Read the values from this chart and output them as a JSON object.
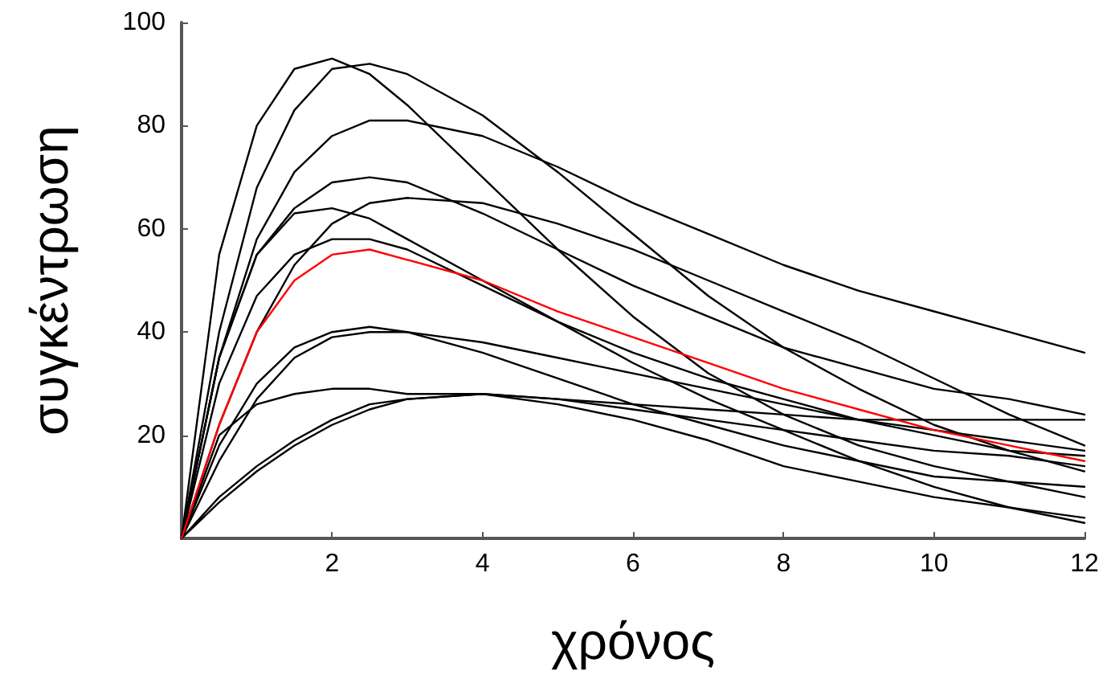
{
  "chart_data": {
    "type": "line",
    "xlabel": "χρόνος",
    "ylabel": "συγκέντρωση",
    "x": [
      0,
      0.5,
      1,
      1.5,
      2,
      2.5,
      3,
      4,
      5,
      6,
      7,
      8,
      9,
      10,
      11,
      12
    ],
    "xlim": [
      0,
      12
    ],
    "xticks": [
      2,
      4,
      6,
      8,
      10,
      12
    ],
    "ylim": [
      0,
      100
    ],
    "yticks": [
      20,
      40,
      60,
      80,
      100
    ],
    "grid": false,
    "marker": "none",
    "line_style": "solid",
    "series": [
      {
        "color": "#000000",
        "values": [
          0,
          55,
          80,
          91,
          93,
          90,
          84,
          70,
          56,
          43,
          32,
          24,
          18,
          14,
          11,
          8
        ]
      },
      {
        "color": "#000000",
        "values": [
          0,
          40,
          68,
          83,
          91,
          92,
          90,
          82,
          71,
          59,
          47,
          37,
          29,
          22,
          17,
          13
        ]
      },
      {
        "color": "#000000",
        "values": [
          0,
          35,
          58,
          71,
          78,
          81,
          81,
          78,
          72,
          65,
          59,
          53,
          48,
          44,
          40,
          36
        ]
      },
      {
        "color": "#000000",
        "values": [
          0,
          35,
          55,
          64,
          69,
          70,
          69,
          63,
          56,
          49,
          43,
          37,
          33,
          29,
          27,
          24
        ]
      },
      {
        "color": "#000000",
        "values": [
          0,
          35,
          55,
          63,
          64,
          62,
          58,
          50,
          42,
          34,
          27,
          21,
          15,
          10,
          6,
          3
        ]
      },
      {
        "color": "#000000",
        "values": [
          0,
          22,
          40,
          53,
          61,
          65,
          66,
          65,
          61,
          56,
          50,
          44,
          38,
          31,
          24,
          18
        ]
      },
      {
        "color": "#000000",
        "values": [
          0,
          30,
          47,
          55,
          58,
          58,
          56,
          49,
          42,
          36,
          31,
          27,
          23,
          20,
          17,
          16
        ]
      },
      {
        "color": "#000000",
        "values": [
          0,
          18,
          30,
          37,
          40,
          41,
          40,
          36,
          31,
          26,
          22,
          18,
          15,
          12,
          11,
          10
        ]
      },
      {
        "color": "#000000",
        "values": [
          0,
          15,
          27,
          35,
          39,
          40,
          40,
          38,
          35,
          32,
          29,
          26,
          23,
          21,
          19,
          17
        ]
      },
      {
        "color": "#000000",
        "values": [
          0,
          20,
          26,
          28,
          29,
          29,
          28,
          28,
          27,
          26,
          25,
          24,
          23,
          23,
          23,
          23
        ]
      },
      {
        "color": "#000000",
        "values": [
          0,
          8,
          14,
          19,
          23,
          26,
          27,
          28,
          27,
          25,
          23,
          21,
          19,
          17,
          16,
          14
        ]
      },
      {
        "color": "#000000",
        "values": [
          0,
          7,
          13,
          18,
          22,
          25,
          27,
          28,
          26,
          23,
          19,
          14,
          11,
          8,
          6,
          4
        ]
      },
      {
        "color": "#ff0000",
        "values": [
          0,
          22,
          40,
          50,
          55,
          56,
          54,
          50,
          44,
          39,
          34,
          29,
          25,
          21,
          18,
          15
        ]
      }
    ]
  }
}
